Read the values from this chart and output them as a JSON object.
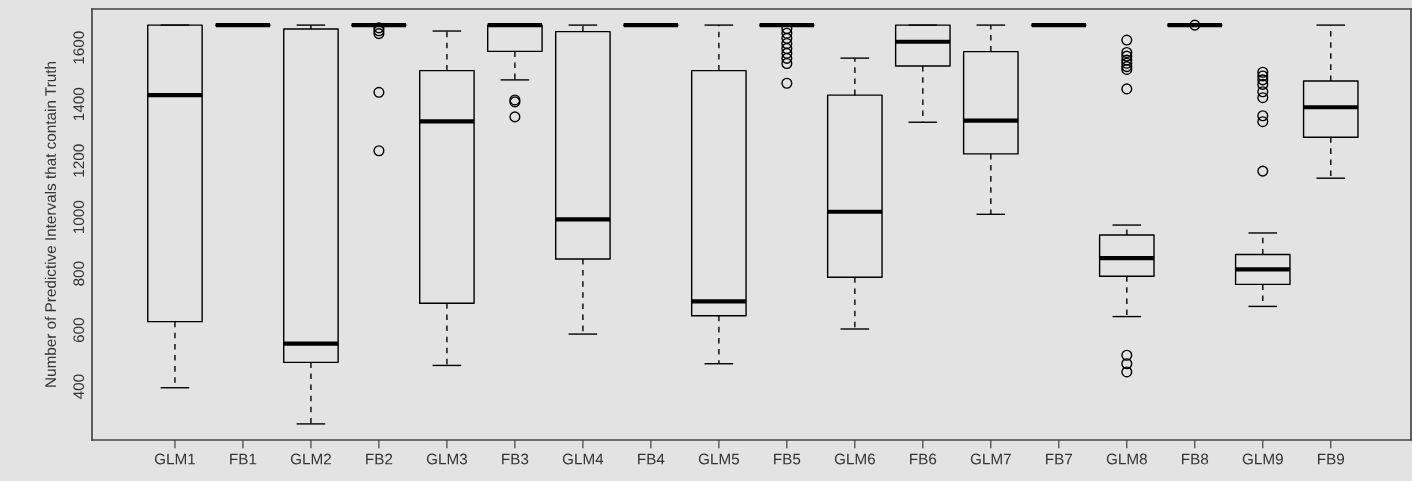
{
  "chart_data": {
    "type": "box",
    "ylabel": "Number of Predictive Intervals that contain Truth",
    "categories": [
      "GLM1",
      "FB1",
      "GLM2",
      "FB2",
      "GLM3",
      "FB3",
      "GLM4",
      "FB4",
      "GLM5",
      "FB5",
      "GLM6",
      "FB6",
      "GLM7",
      "FB7",
      "GLM8",
      "FB8",
      "GLM9",
      "FB9"
    ],
    "boxes": [
      {
        "low": 396,
        "q1": 630,
        "median": 1432,
        "q3": 1680,
        "high": 1680
      },
      {
        "low": 1680,
        "q1": 1680,
        "median": 1680,
        "q3": 1680,
        "high": 1680
      },
      {
        "low": 268,
        "q1": 486,
        "median": 552,
        "q3": 1666,
        "high": 1680
      },
      {
        "low": 1680,
        "q1": 1680,
        "median": 1680,
        "q3": 1680,
        "high": 1680,
        "outliers": [
          1670,
          1660,
          1650,
          1442,
          1235
        ]
      },
      {
        "low": 475,
        "q1": 695,
        "median": 1339,
        "q3": 1519,
        "high": 1659
      },
      {
        "low": 1486,
        "q1": 1587,
        "median": 1680,
        "q3": 1680,
        "high": 1680,
        "outliers": [
          1415,
          1408,
          1355
        ]
      },
      {
        "low": 586,
        "q1": 852,
        "median": 992,
        "q3": 1657,
        "high": 1680
      },
      {
        "low": 1680,
        "q1": 1680,
        "median": 1680,
        "q3": 1680,
        "high": 1680
      },
      {
        "low": 481,
        "q1": 651,
        "median": 702,
        "q3": 1519,
        "high": 1680
      },
      {
        "low": 1680,
        "q1": 1680,
        "median": 1680,
        "q3": 1680,
        "high": 1680,
        "outliers": [
          1668,
          1651,
          1633,
          1615,
          1597,
          1580,
          1562,
          1544,
          1474
        ]
      },
      {
        "low": 604,
        "q1": 787,
        "median": 1019,
        "q3": 1432,
        "high": 1563
      },
      {
        "low": 1336,
        "q1": 1535,
        "median": 1621,
        "q3": 1680,
        "high": 1680
      },
      {
        "low": 1010,
        "q1": 1224,
        "median": 1342,
        "q3": 1586,
        "high": 1680
      },
      {
        "low": 1680,
        "q1": 1680,
        "median": 1680,
        "q3": 1680,
        "high": 1680
      },
      {
        "low": 648,
        "q1": 791,
        "median": 855,
        "q3": 937,
        "high": 972,
        "outliers": [
          1627,
          1583,
          1570,
          1556,
          1545,
          1533,
          1523,
          1454,
          511,
          481,
          452
        ]
      },
      {
        "low": 1680,
        "q1": 1680,
        "median": 1680,
        "q3": 1680,
        "high": 1680,
        "outliers": [
          1680
        ]
      },
      {
        "low": 684,
        "q1": 762,
        "median": 815,
        "q3": 868,
        "high": 944,
        "outliers": [
          1513,
          1500,
          1486,
          1470,
          1444,
          1423,
          1359,
          1338,
          1163
        ]
      },
      {
        "low": 1138,
        "q1": 1283,
        "median": 1389,
        "q3": 1482,
        "high": 1680
      }
    ],
    "ylim": [
      211,
      1737
    ],
    "yticks": [
      400,
      600,
      800,
      1000,
      1200,
      1400,
      1600
    ],
    "grid": false,
    "legend": false
  }
}
